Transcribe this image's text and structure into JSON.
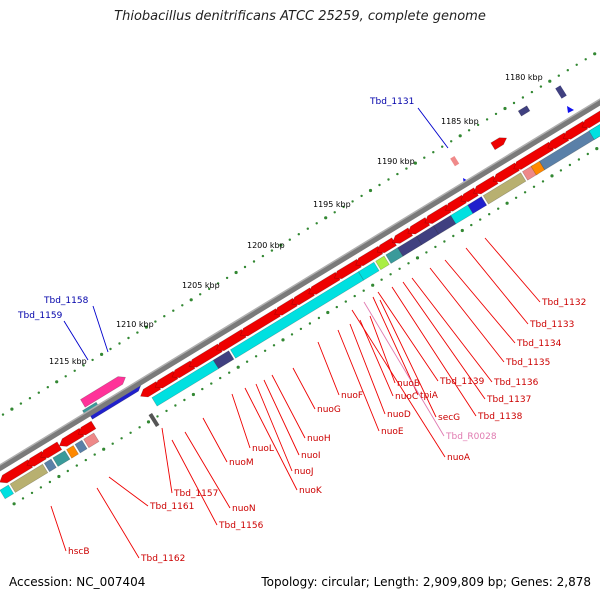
{
  "title": "Thiobacillus denitrificans ATCC 25259, complete genome",
  "footer": {
    "accession": "Accession: NC_007404",
    "summary": "Topology: circular; Length: 2,909,809 bp; Genes: 2,878"
  },
  "scale_ticks": [
    "1180 kbp",
    "1185 kbp",
    "1190 kbp",
    "1195 kbp",
    "1200 kbp",
    "1205 kbp",
    "1210 kbp",
    "1215 kbp"
  ],
  "colors": {
    "backbone": "#777777",
    "cds_red": "#ee0000",
    "cyan": "#00e0e0",
    "dark_blue": "#2020cc",
    "navy": "#404080",
    "olive": "#b8b070",
    "pink": "#ff3399",
    "orange": "#ff8800",
    "teal": "#3a9a9a",
    "steel": "#5a80a8",
    "dots": "#338833"
  },
  "gene_labels": [
    {
      "text": "Tbd_1131",
      "style": "blue"
    },
    {
      "text": "Tbd_1158",
      "style": "blue"
    },
    {
      "text": "Tbd_1159",
      "style": "blue"
    },
    {
      "text": "Tbd_1132",
      "style": "red"
    },
    {
      "text": "Tbd_1133",
      "style": "red"
    },
    {
      "text": "Tbd_1134",
      "style": "red"
    },
    {
      "text": "Tbd_1135",
      "style": "red"
    },
    {
      "text": "Tbd_1136",
      "style": "red"
    },
    {
      "text": "Tbd_1137",
      "style": "red"
    },
    {
      "text": "Tbd_1138",
      "style": "red"
    },
    {
      "text": "Tbd_1139",
      "style": "red"
    },
    {
      "text": "tpiA",
      "style": "red"
    },
    {
      "text": "secG",
      "style": "red"
    },
    {
      "text": "Tbd_R0028",
      "style": "pink"
    },
    {
      "text": "nuoA",
      "style": "red"
    },
    {
      "text": "nuoB",
      "style": "red"
    },
    {
      "text": "nuoC",
      "style": "red"
    },
    {
      "text": "nuoD",
      "style": "red"
    },
    {
      "text": "nuoE",
      "style": "red"
    },
    {
      "text": "nuoF",
      "style": "red"
    },
    {
      "text": "nuoG",
      "style": "red"
    },
    {
      "text": "nuoH",
      "style": "red"
    },
    {
      "text": "nuoI",
      "style": "red"
    },
    {
      "text": "nuoJ",
      "style": "red"
    },
    {
      "text": "nuoK",
      "style": "red"
    },
    {
      "text": "nuoL",
      "style": "red"
    },
    {
      "text": "nuoM",
      "style": "red"
    },
    {
      "text": "nuoN",
      "style": "red"
    },
    {
      "text": "Tbd_1156",
      "style": "red"
    },
    {
      "text": "Tbd_1157",
      "style": "red"
    },
    {
      "text": "Tbd_1161",
      "style": "red"
    },
    {
      "text": "Tbd_1162",
      "style": "red"
    },
    {
      "text": "hscB",
      "style": "red"
    }
  ]
}
